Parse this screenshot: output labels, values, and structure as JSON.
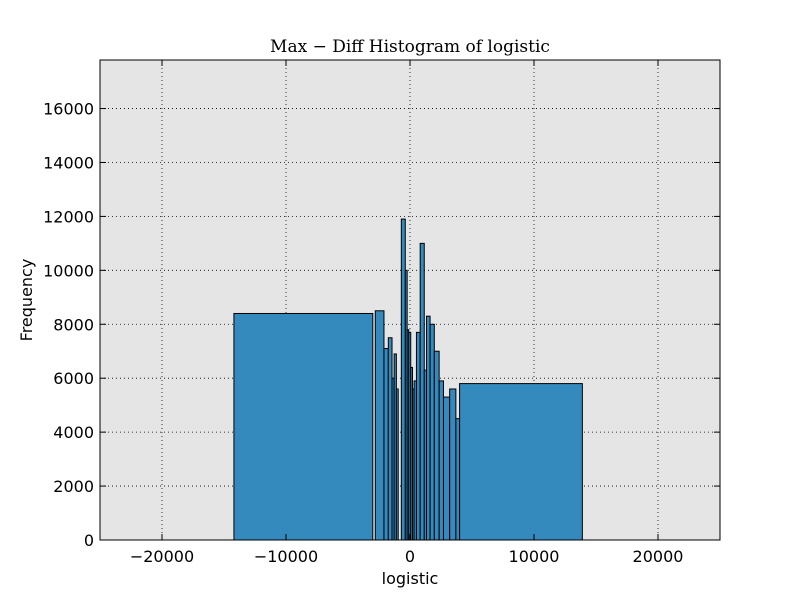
{
  "chart_data": {
    "type": "bar",
    "title": "Max − Diff Histogram of logistic",
    "xlabel": "logistic",
    "ylabel": "Frequency",
    "xlim": [
      -25000,
      25000
    ],
    "ylim": [
      0,
      17800
    ],
    "x_ticks": [
      -20000,
      -10000,
      0,
      10000,
      20000
    ],
    "x_tick_labels": [
      "−20000",
      "−10000",
      "0",
      "10000",
      "20000"
    ],
    "y_ticks": [
      0,
      2000,
      4000,
      6000,
      8000,
      10000,
      12000,
      14000,
      16000
    ],
    "y_tick_labels": [
      "0",
      "2000",
      "4000",
      "6000",
      "8000",
      "10000",
      "12000",
      "14000",
      "16000"
    ],
    "grid": true,
    "bar_color": "#348abd",
    "plot_background": "#e5e5e5",
    "bins": [
      {
        "x0": -14200,
        "x1": -3000,
        "value": 8400
      },
      {
        "x0": -2800,
        "x1": -2100,
        "value": 8500
      },
      {
        "x0": -2100,
        "x1": -1750,
        "value": 7100
      },
      {
        "x0": -1750,
        "x1": -1450,
        "value": 7500
      },
      {
        "x0": -1450,
        "x1": -1280,
        "value": 6000
      },
      {
        "x0": -1280,
        "x1": -1100,
        "value": 6900
      },
      {
        "x0": -1100,
        "x1": -950,
        "value": 5600
      },
      {
        "x0": -700,
        "x1": -380,
        "value": 11900
      },
      {
        "x0": -380,
        "x1": -230,
        "value": 10000
      },
      {
        "x0": -230,
        "x1": -100,
        "value": 7800
      },
      {
        "x0": -100,
        "x1": 60,
        "value": 7700
      },
      {
        "x0": 60,
        "x1": 200,
        "value": 6400
      },
      {
        "x0": 200,
        "x1": 330,
        "value": 5600
      },
      {
        "x0": 330,
        "x1": 520,
        "value": 5900
      },
      {
        "x0": 520,
        "x1": 820,
        "value": 7700
      },
      {
        "x0": 820,
        "x1": 1150,
        "value": 11000
      },
      {
        "x0": 1150,
        "x1": 1330,
        "value": 6300
      },
      {
        "x0": 1330,
        "x1": 1620,
        "value": 8300
      },
      {
        "x0": 1620,
        "x1": 1960,
        "value": 8000
      },
      {
        "x0": 1960,
        "x1": 2350,
        "value": 7000
      },
      {
        "x0": 2350,
        "x1": 2700,
        "value": 5900
      },
      {
        "x0": 2700,
        "x1": 3200,
        "value": 5300
      },
      {
        "x0": 3200,
        "x1": 3700,
        "value": 5600
      },
      {
        "x0": 3700,
        "x1": 4000,
        "value": 4500
      },
      {
        "x0": 4000,
        "x1": 13900,
        "value": 5800
      }
    ]
  }
}
